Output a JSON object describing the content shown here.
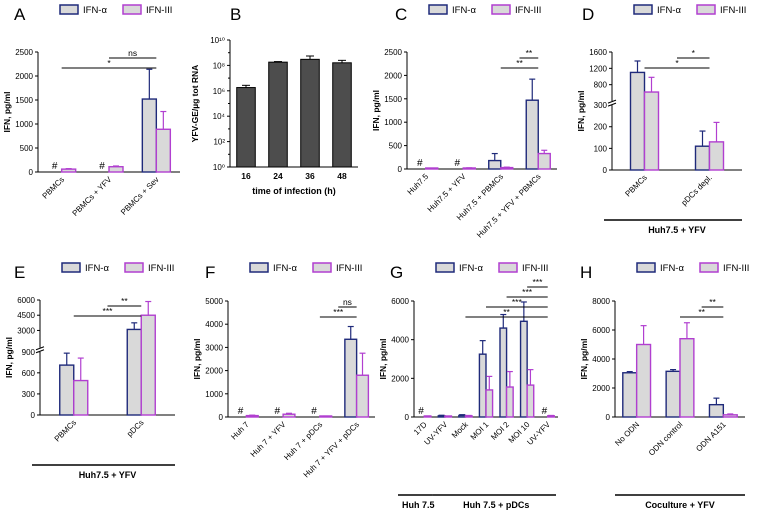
{
  "colors": {
    "alpha": "#1f2a7a",
    "iii": "#b13fd0",
    "bar_fill": "#d9d9d9",
    "dark_bar": "#4d4d4d"
  },
  "chart_data": [
    {
      "panel": "A",
      "type": "bar",
      "ylabel": "IFN, pg/ml",
      "ylim": [
        0,
        2500
      ],
      "yticks": [
        0,
        500,
        1000,
        1500,
        2000,
        2500
      ],
      "legend": [
        "IFN-α",
        "IFN-III"
      ],
      "categories": [
        "PBMCs",
        "PBMCs + YFV",
        "PBMCs + Sev"
      ],
      "series": [
        {
          "name": "IFN-α",
          "values": [
            0,
            0,
            1520
          ],
          "errors": [
            0,
            0,
            620
          ],
          "hash": [
            true,
            true,
            false
          ]
        },
        {
          "name": "IFN-III",
          "values": [
            60,
            110,
            890
          ],
          "errors": [
            10,
            15,
            370
          ],
          "hash": [
            false,
            false,
            false
          ]
        }
      ],
      "hash_label": "#",
      "brackets": [
        {
          "label": "*",
          "from": 0,
          "to": 2,
          "level": 1
        },
        {
          "label": "ns",
          "from": 1,
          "to": 2,
          "level": 2
        }
      ]
    },
    {
      "panel": "B",
      "type": "bar",
      "scale": "log",
      "ylabel": "YFV-GE/µg tot RNA",
      "xlabel": "time of infection (h)",
      "ylim": [
        1,
        10000000000
      ],
      "ytick_labels": [
        "10⁰",
        "10²",
        "10⁴",
        "10⁶",
        "10⁸",
        "10¹⁰"
      ],
      "categories": [
        "16",
        "24",
        "36",
        "48"
      ],
      "values": [
        1800000,
        180000000,
        300000000,
        160000000
      ],
      "errors": [
        900000,
        20000000,
        250000000,
        90000000
      ]
    },
    {
      "panel": "C",
      "type": "bar",
      "ylabel": "IFN, pg/ml",
      "ylim": [
        0,
        2500
      ],
      "yticks": [
        0,
        500,
        1000,
        1500,
        2000,
        2500
      ],
      "legend": [
        "IFN-α",
        "IFN-III"
      ],
      "categories": [
        "Huh7.5",
        "Huh7.5 + YFV",
        "Huh7.5 + PBMCs",
        "Huh7.5 + YFV + PBMCs"
      ],
      "series": [
        {
          "name": "IFN-α",
          "values": [
            0,
            0,
            180,
            1470
          ],
          "errors": [
            0,
            0,
            150,
            450
          ],
          "hash": [
            true,
            true,
            false,
            false
          ]
        },
        {
          "name": "IFN-III",
          "values": [
            0,
            20,
            30,
            330
          ],
          "errors": [
            0,
            5,
            10,
            70
          ],
          "hash": [
            false,
            false,
            false,
            false
          ]
        }
      ],
      "hash_label": "#",
      "brackets": [
        {
          "label": "**",
          "from": 2,
          "to": 3,
          "level": 1
        },
        {
          "label": "**",
          "from": 2.5,
          "to": 3,
          "level": 2
        }
      ]
    },
    {
      "panel": "D",
      "type": "bar",
      "broken_axis": true,
      "ylabel": "IFN, pg/ml",
      "ytick_labels": [
        "0",
        "100",
        "200",
        "300",
        "800",
        "1200",
        "1600"
      ],
      "legend": [
        "IFN-α",
        "IFN-III"
      ],
      "categories": [
        "PBMCs",
        "pDCs depl."
      ],
      "series": [
        {
          "name": "IFN-α",
          "values": [
            1100,
            110
          ],
          "errors": [
            280,
            70
          ]
        },
        {
          "name": "IFN-III",
          "values": [
            620,
            130
          ],
          "errors": [
            360,
            90
          ]
        }
      ],
      "brackets": [
        {
          "label": "*",
          "from": 0,
          "to": 1,
          "level": 1
        },
        {
          "label": "*",
          "from": 0.5,
          "to": 1,
          "level": 2
        }
      ],
      "group_label": "Huh7.5 + YFV"
    },
    {
      "panel": "E",
      "type": "bar",
      "broken_axis": true,
      "ylabel": "IFN, pg/ml",
      "ytick_labels": [
        "0",
        "300",
        "600",
        "900",
        "3000",
        "4500",
        "6000"
      ],
      "legend": [
        "IFN-α",
        "IFN-III"
      ],
      "categories": [
        "PBMCs",
        "pDCs"
      ],
      "series": [
        {
          "name": "IFN-α",
          "values": [
            710,
            3100
          ],
          "errors": [
            170,
            650
          ]
        },
        {
          "name": "IFN-III",
          "values": [
            490,
            4500
          ],
          "errors": [
            320,
            1350
          ]
        }
      ],
      "brackets": [
        {
          "label": "***",
          "from": 0,
          "to": 1,
          "level": 1
        },
        {
          "label": "**",
          "from": 0.5,
          "to": 1,
          "level": 2
        }
      ],
      "group_label": "Huh7.5 + YFV"
    },
    {
      "panel": "F",
      "type": "bar",
      "ylabel": "IFN, pg/ml",
      "ylim": [
        0,
        5000
      ],
      "yticks": [
        0,
        1000,
        2000,
        3000,
        4000,
        5000
      ],
      "legend": [
        "IFN-α",
        "IFN-III"
      ],
      "categories": [
        "Huh 7",
        "Huh 7 + YFV",
        "Huh 7 + pDCs",
        "Huh 7 + YFV + pDCs"
      ],
      "series": [
        {
          "name": "IFN-α",
          "values": [
            0,
            0,
            0,
            3350
          ],
          "errors": [
            0,
            0,
            0,
            550
          ],
          "hash": [
            true,
            true,
            true,
            false
          ]
        },
        {
          "name": "IFN-III",
          "values": [
            60,
            120,
            30,
            1800
          ],
          "errors": [
            20,
            40,
            10,
            950
          ],
          "hash": [
            false,
            false,
            false,
            false
          ]
        }
      ],
      "hash_label": "#",
      "brackets": [
        {
          "label": "***",
          "from": 2,
          "to": 3,
          "level": 1
        },
        {
          "label": "ns",
          "from": 2.5,
          "to": 3,
          "level": 2
        }
      ]
    },
    {
      "panel": "G",
      "type": "bar",
      "ylabel": "IFN, pg/ml",
      "ylim": [
        0,
        6000
      ],
      "yticks": [
        0,
        2000,
        4000,
        6000
      ],
      "legend": [
        "IFN-α",
        "IFN-III"
      ],
      "categories": [
        "17D",
        "UV-YFV",
        "Mock",
        "MOI 1",
        "MOI 2",
        "MOI 10",
        "UV-YFV"
      ],
      "series": [
        {
          "name": "IFN-α",
          "values": [
            0,
            60,
            80,
            3250,
            4600,
            4950,
            0
          ],
          "errors": [
            0,
            30,
            40,
            700,
            700,
            1000,
            0
          ],
          "hash": [
            true,
            false,
            false,
            false,
            false,
            false,
            true
          ]
        },
        {
          "name": "IFN-III",
          "values": [
            40,
            30,
            60,
            1400,
            1550,
            1650,
            60
          ],
          "errors": [
            10,
            10,
            20,
            700,
            800,
            800,
            20
          ],
          "hash": [
            false,
            false,
            false,
            false,
            false,
            false,
            false
          ]
        }
      ],
      "hash_label": "#",
      "brackets": [
        {
          "label": "**",
          "from": 2,
          "to": 6,
          "level": 1
        },
        {
          "label": "***",
          "from": 3,
          "to": 6,
          "level": 2
        },
        {
          "label": "***",
          "from": 4,
          "to": 6,
          "level": 3
        },
        {
          "label": "***",
          "from": 5,
          "to": 6,
          "level": 4
        }
      ],
      "group_labels": [
        {
          "label": "Huh 7.5",
          "from": 0,
          "to": 0
        },
        {
          "label": "Huh 7.5 + pDCs",
          "from": 1,
          "to": 6
        }
      ]
    },
    {
      "panel": "H",
      "type": "bar",
      "ylabel": "IFN, pg/ml",
      "ylim": [
        0,
        8000
      ],
      "yticks": [
        0,
        2000,
        4000,
        6000,
        8000
      ],
      "legend": [
        "IFN-α",
        "IFN-III"
      ],
      "categories": [
        "No ODN",
        "ODN control",
        "ODN A151"
      ],
      "series": [
        {
          "name": "IFN-α",
          "values": [
            3050,
            3150,
            850
          ],
          "errors": [
            80,
            120,
            450
          ]
        },
        {
          "name": "IFN-III",
          "values": [
            5000,
            5400,
            150
          ],
          "errors": [
            1300,
            1100,
            60
          ]
        }
      ],
      "brackets": [
        {
          "label": "**",
          "from": 1,
          "to": 2,
          "level": 1
        },
        {
          "label": "**",
          "from": 1.5,
          "to": 2,
          "level": 2
        }
      ],
      "group_label": "Coculture + YFV"
    }
  ]
}
